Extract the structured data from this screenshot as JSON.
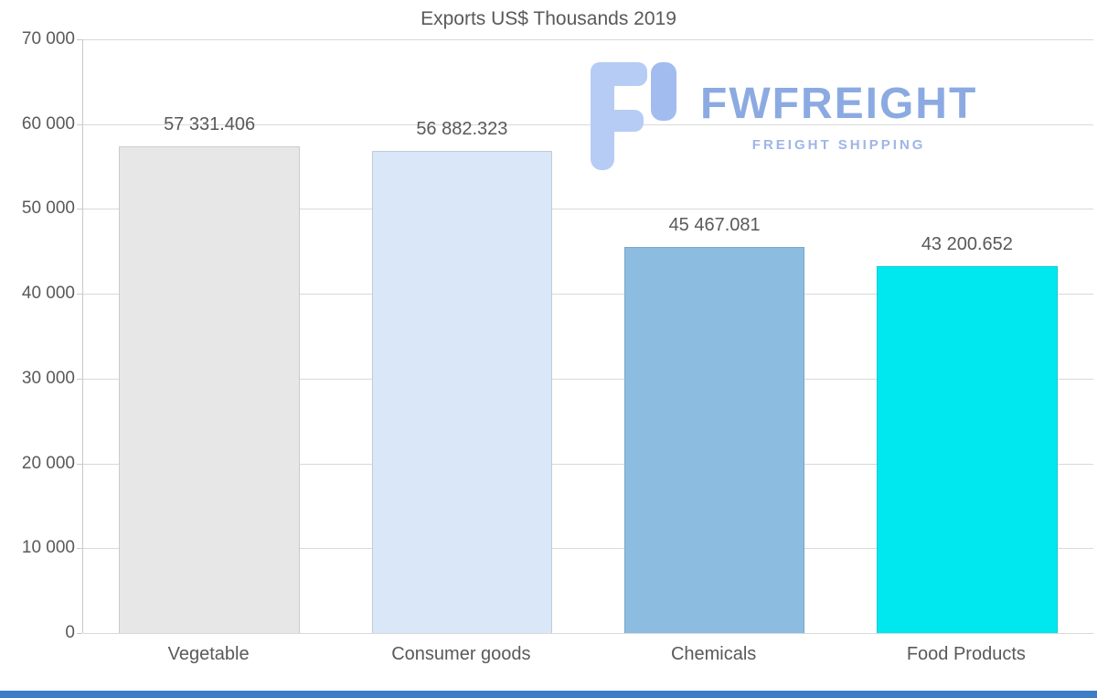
{
  "chart_data": {
    "type": "bar",
    "title": "Exports US$ Thousands 2019",
    "categories": [
      "Vegetable",
      "Consumer goods",
      "Chemicals",
      "Food Products"
    ],
    "values": [
      57331.406,
      56882.323,
      45467.081,
      43200.652
    ],
    "value_labels": [
      "57 331.406",
      "56 882.323",
      "45 467.081",
      "43 200.652"
    ],
    "bar_colors": [
      "#e7e7e7",
      "#d9e7f8",
      "#8dbce1",
      "#00e8ef"
    ],
    "xlabel": "",
    "ylabel": "",
    "ylim": [
      0,
      70000
    ],
    "ytick_step": 10000,
    "ytick_labels": [
      "0",
      "10 000",
      "20 000",
      "30 000",
      "40 000",
      "50 000",
      "60 000",
      "70 000"
    ],
    "grid": true,
    "legend": false
  },
  "watermark": {
    "brand": "FWFREIGHT",
    "tagline": "FREIGHT SHIPPING",
    "brand_color": "#8caae2",
    "tagline_color": "#9db5e8",
    "icon_color": "#b7ccf4",
    "icon_accent_color": "#a3bcf0",
    "icon_name": "fwfreight-logo-icon"
  },
  "footer": {
    "accent_color": "#3d7cc9"
  }
}
